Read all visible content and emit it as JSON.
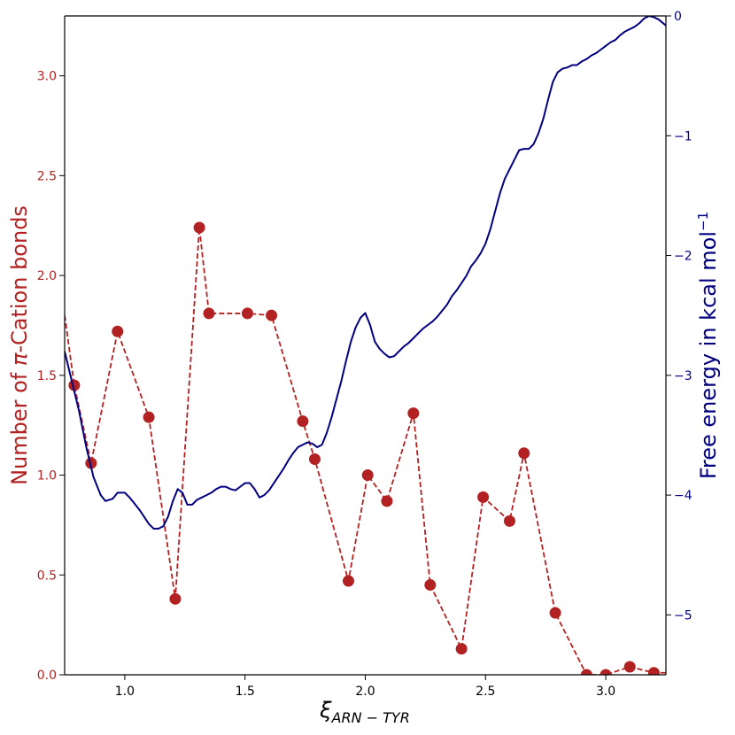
{
  "chart_data": {
    "type": "line",
    "xlabel_main": "ξ",
    "xlabel_sub": "ARN − TYR",
    "ylabel_left_prefix": "Number of ",
    "ylabel_left_pi": "π",
    "ylabel_left_suffix": "-Cation bonds",
    "ylabel_right_main": "Free energy in kcal mol",
    "ylabel_right_sup": "−1",
    "xlim": [
      0.75,
      3.25
    ],
    "ylim_left": [
      0.0,
      3.3
    ],
    "ylim_right": [
      -5.5,
      0.0
    ],
    "xticks": [
      1.0,
      1.5,
      2.0,
      2.5,
      3.0
    ],
    "xtick_labels": [
      "1.0",
      "1.5",
      "2.0",
      "2.5",
      "3.0"
    ],
    "yticks_left": [
      0.0,
      0.5,
      1.0,
      1.5,
      2.0,
      2.5,
      3.0
    ],
    "ytick_labels_left": [
      "0.0",
      "0.5",
      "1.0",
      "1.5",
      "2.0",
      "2.5",
      "3.0"
    ],
    "yticks_right": [
      0,
      -1,
      -2,
      -3,
      -4,
      -5
    ],
    "ytick_labels_right": [
      "0",
      "−1",
      "−2",
      "−3",
      "−4",
      "−5"
    ],
    "grid": false,
    "colors": {
      "left_axis": "#b22222",
      "right_axis": "#000080"
    },
    "series": [
      {
        "axis": "left",
        "style": "dashed-markers",
        "color": "#b22222",
        "x": [
          0.75,
          0.79,
          0.86,
          0.97,
          1.1,
          1.21,
          1.31,
          1.35,
          1.51,
          1.61,
          1.74,
          1.79,
          1.93,
          2.01,
          2.09,
          2.2,
          2.27,
          2.4,
          2.49,
          2.6,
          2.66,
          2.79,
          2.92,
          3.0,
          3.1,
          3.2,
          3.25
        ],
        "y": [
          1.8,
          1.45,
          1.06,
          1.72,
          1.29,
          0.38,
          2.24,
          1.81,
          1.81,
          1.8,
          1.27,
          1.08,
          0.47,
          1.0,
          0.87,
          1.31,
          0.45,
          0.13,
          0.89,
          0.77,
          1.11,
          0.31,
          0.0,
          0.0,
          0.04,
          0.01,
          0.01
        ],
        "markers": [
          false,
          true,
          true,
          true,
          true,
          true,
          true,
          true,
          true,
          true,
          true,
          true,
          true,
          true,
          true,
          true,
          true,
          true,
          true,
          true,
          true,
          true,
          true,
          true,
          true,
          true,
          false
        ]
      },
      {
        "axis": "right",
        "style": "solid",
        "color": "#000080",
        "x": [
          0.75,
          0.78,
          0.81,
          0.84,
          0.87,
          0.9,
          0.92,
          0.95,
          0.97,
          1.0,
          1.02,
          1.04,
          1.06,
          1.08,
          1.1,
          1.12,
          1.14,
          1.16,
          1.18,
          1.2,
          1.22,
          1.24,
          1.26,
          1.28,
          1.3,
          1.32,
          1.34,
          1.36,
          1.38,
          1.4,
          1.42,
          1.44,
          1.46,
          1.48,
          1.5,
          1.52,
          1.54,
          1.56,
          1.58,
          1.6,
          1.62,
          1.64,
          1.66,
          1.68,
          1.7,
          1.72,
          1.74,
          1.76,
          1.78,
          1.8,
          1.82,
          1.84,
          1.86,
          1.88,
          1.9,
          1.92,
          1.94,
          1.96,
          1.98,
          2.0,
          2.02,
          2.04,
          2.06,
          2.08,
          2.1,
          2.12,
          2.14,
          2.16,
          2.18,
          2.2,
          2.22,
          2.24,
          2.26,
          2.28,
          2.3,
          2.32,
          2.34,
          2.36,
          2.38,
          2.4,
          2.42,
          2.44,
          2.46,
          2.48,
          2.5,
          2.52,
          2.54,
          2.56,
          2.58,
          2.6,
          2.62,
          2.64,
          2.66,
          2.68,
          2.7,
          2.72,
          2.74,
          2.76,
          2.78,
          2.8,
          2.82,
          2.84,
          2.86,
          2.88,
          2.9,
          2.92,
          2.94,
          2.96,
          2.98,
          3.0,
          3.02,
          3.04,
          3.06,
          3.08,
          3.1,
          3.12,
          3.14,
          3.16,
          3.18,
          3.2,
          3.22,
          3.25
        ],
        "y": [
          -2.8,
          -3.05,
          -3.3,
          -3.6,
          -3.85,
          -4.0,
          -4.05,
          -4.03,
          -3.98,
          -3.98,
          -4.02,
          -4.07,
          -4.12,
          -4.18,
          -4.24,
          -4.28,
          -4.28,
          -4.26,
          -4.18,
          -4.05,
          -3.95,
          -3.98,
          -4.08,
          -4.08,
          -4.04,
          -4.02,
          -4.0,
          -3.98,
          -3.95,
          -3.93,
          -3.93,
          -3.95,
          -3.96,
          -3.93,
          -3.9,
          -3.9,
          -3.95,
          -4.02,
          -4.0,
          -3.96,
          -3.9,
          -3.84,
          -3.78,
          -3.71,
          -3.65,
          -3.6,
          -3.58,
          -3.56,
          -3.57,
          -3.6,
          -3.58,
          -3.48,
          -3.35,
          -3.2,
          -3.05,
          -2.88,
          -2.72,
          -2.6,
          -2.52,
          -2.48,
          -2.58,
          -2.72,
          -2.78,
          -2.82,
          -2.85,
          -2.84,
          -2.8,
          -2.76,
          -2.73,
          -2.69,
          -2.65,
          -2.61,
          -2.58,
          -2.55,
          -2.51,
          -2.46,
          -2.41,
          -2.34,
          -2.29,
          -2.23,
          -2.17,
          -2.09,
          -2.04,
          -1.98,
          -1.9,
          -1.78,
          -1.63,
          -1.48,
          -1.36,
          -1.28,
          -1.2,
          -1.12,
          -1.11,
          -1.11,
          -1.07,
          -0.98,
          -0.86,
          -0.7,
          -0.55,
          -0.47,
          -0.44,
          -0.43,
          -0.41,
          -0.41,
          -0.38,
          -0.36,
          -0.33,
          -0.31,
          -0.28,
          -0.25,
          -0.22,
          -0.2,
          -0.16,
          -0.13,
          -0.11,
          -0.09,
          -0.06,
          -0.02,
          0.0,
          -0.01,
          -0.03,
          -0.08
        ]
      }
    ]
  }
}
